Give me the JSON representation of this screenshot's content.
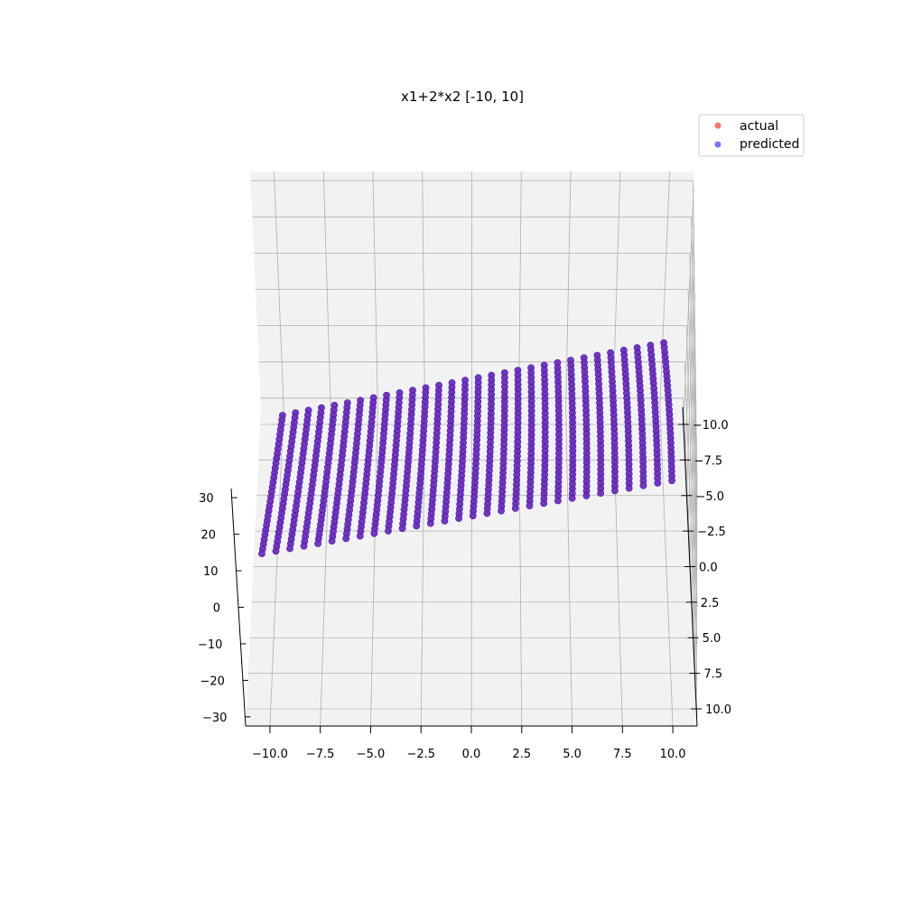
{
  "chart_data": {
    "type": "scatter",
    "title": "x1+2*x2 [-10, 10]",
    "xlabel": "",
    "ylabel": "",
    "zlabel": "",
    "x_range": [
      -10,
      10
    ],
    "y_range": [
      -10,
      10
    ],
    "z_range": [
      -30,
      30
    ],
    "grid": true,
    "legend_position": "top-right",
    "x_ticks": [
      "−10.0",
      "−7.5",
      "−5.0",
      "−2.5",
      "0.0",
      "2.5",
      "5.0",
      "7.5",
      "10.0"
    ],
    "y_ticks": [
      "−10.0",
      "−7.5",
      "−5.0",
      "−2.5",
      "0.0",
      "2.5",
      "5.0",
      "7.5",
      "10.0"
    ],
    "z_ticks": [
      "−30",
      "−20",
      "−10",
      "0",
      "10",
      "20",
      "30"
    ],
    "function": "z = x1 + 2*x2",
    "grid_points_per_axis": 30,
    "series": [
      {
        "name": "actual",
        "color": "#ff0000",
        "alpha": 0.55,
        "marker": "circle"
      },
      {
        "name": "predicted",
        "color": "#0000ff",
        "alpha": 0.55,
        "marker": "circle"
      }
    ],
    "rendered_point_color": "#6a2bc4"
  },
  "colors": {
    "pane": "#f2f2f2",
    "grid": "#b0b0b0",
    "axis": "#000000"
  }
}
